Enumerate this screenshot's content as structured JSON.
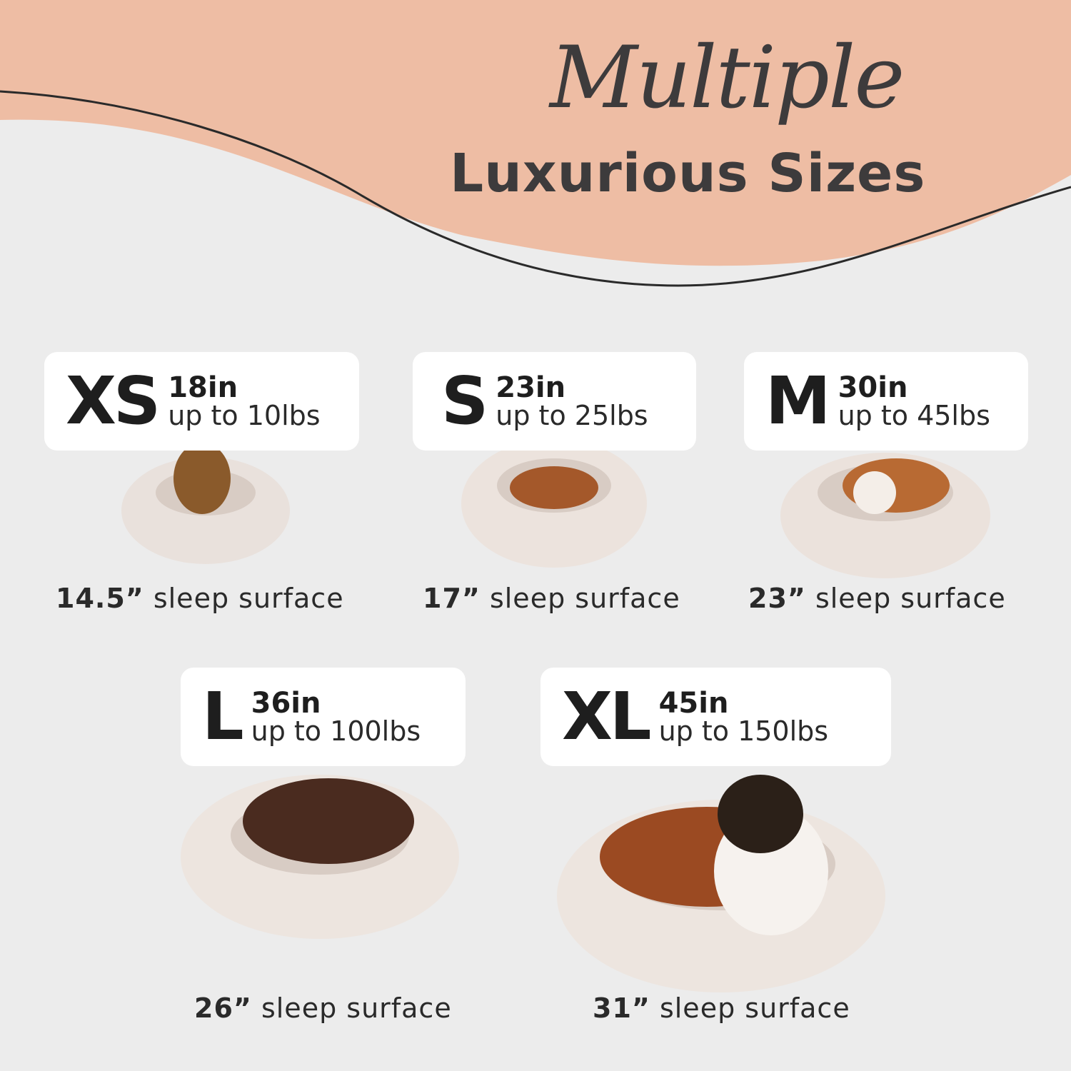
{
  "title": {
    "script": "Multiple",
    "main": "Luxurious Sizes"
  },
  "colors": {
    "peach": "#eebda4",
    "background": "#ececec",
    "text": "#3d3b3c",
    "card": "#ffffff"
  },
  "sizes": [
    {
      "size": "XS",
      "length": "18in",
      "weight": "up to 10lbs",
      "surface": "14.5”",
      "surface_label": "sleep surface",
      "dog": "yorkshire-terrier"
    },
    {
      "size": "S",
      "length": "23in",
      "weight": "up to 25lbs",
      "surface": "17”",
      "surface_label": "sleep surface",
      "dog": "dachshund"
    },
    {
      "size": "M",
      "length": "30in",
      "weight": "up to 45lbs",
      "surface": "23”",
      "surface_label": "sleep surface",
      "dog": "corgi"
    },
    {
      "size": "L",
      "length": "36in",
      "weight": "up to 100lbs",
      "surface": "26”",
      "surface_label": "sleep surface",
      "dog": "chocolate-labrador"
    },
    {
      "size": "XL",
      "length": "45in",
      "weight": "up to 150lbs",
      "surface": "31”",
      "surface_label": "sleep surface",
      "dog": "saint-bernard"
    }
  ]
}
